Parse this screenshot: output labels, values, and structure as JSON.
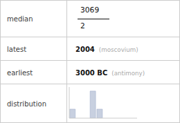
{
  "chart_data": {
    "type": "bar",
    "values": [
      1,
      0,
      0,
      3,
      1,
      0,
      0,
      0,
      0,
      0
    ],
    "color": "#c8d0e0",
    "ylim": [
      0,
      3.45
    ],
    "tick_labels": false,
    "annotations": [
      {
        "label": "median",
        "numerator": "3069",
        "denominator": "2"
      },
      {
        "label": "latest",
        "text": "2004",
        "note": "(moscovium)"
      },
      {
        "label": "earliest",
        "text": "3000 BC",
        "note": "(antimony)"
      },
      {
        "label": "distribution"
      }
    ]
  }
}
